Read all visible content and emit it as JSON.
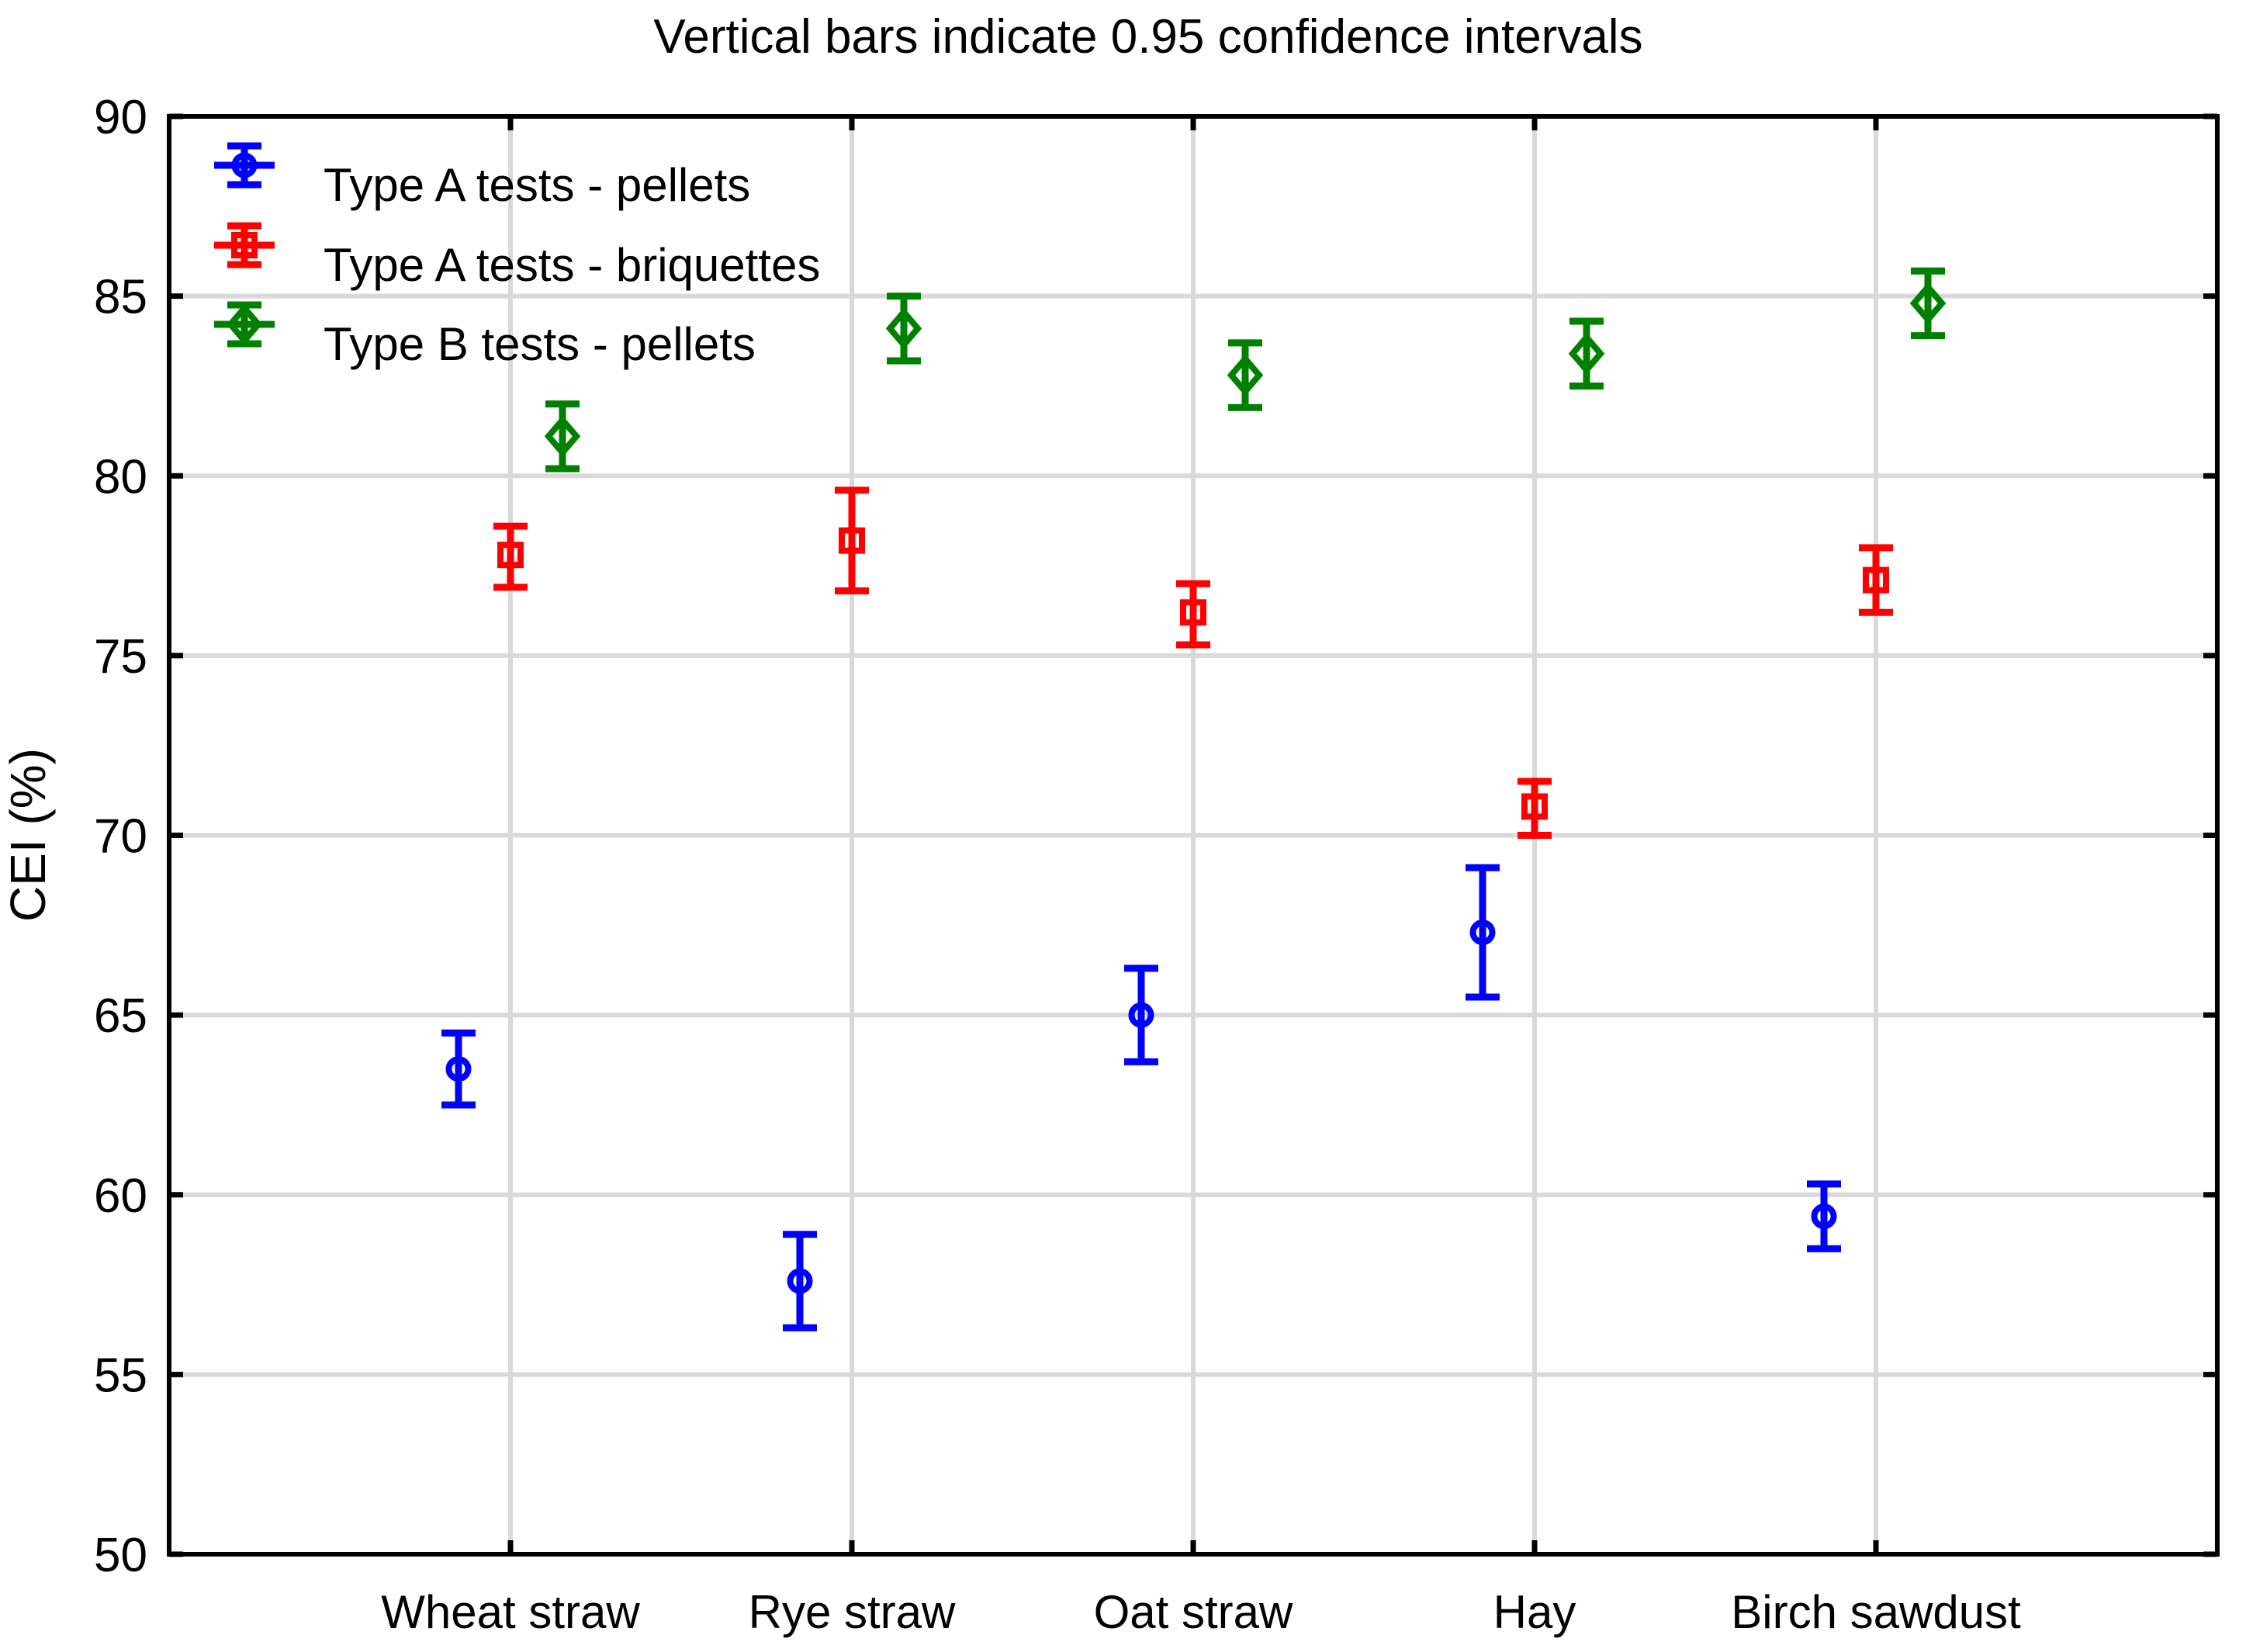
{
  "title": "Vertical bars indicate 0.95 confidence intervals",
  "ylabel": "CEI (%)",
  "legend": {
    "position": "top-left",
    "items": [
      {
        "label": "Type A tests - pellets",
        "marker": "circle",
        "color": "#0000ff"
      },
      {
        "label": "Type A tests - briquettes",
        "marker": "square",
        "color": "#ff0000"
      },
      {
        "label": "Type B tests - pellets",
        "marker": "diamond",
        "color": "#008000"
      }
    ]
  },
  "colors": {
    "blue_series": "#0000ff",
    "red_series": "#ff0000",
    "green_series": "#008000",
    "gridline": "#d9d9d9",
    "frame": "#000000"
  },
  "chart_data": {
    "type": "scatter",
    "subtype": "means-with-error-bars",
    "title": "Vertical bars indicate 0.95 confidence intervals",
    "xlabel": "",
    "ylabel": "CEI (%)",
    "categories": [
      "Wheat straw",
      "Rye straw",
      "Oat straw",
      "Hay",
      "Birch sawdust"
    ],
    "ylim": [
      50,
      90
    ],
    "ytick_step": 5,
    "ytick_labels": [
      "50",
      "55",
      "60",
      "65",
      "70",
      "75",
      "80",
      "85",
      "90"
    ],
    "grid": true,
    "legend_position": "top-left",
    "series": [
      {
        "name": "Type A tests - pellets",
        "marker": "circle",
        "color": "#0000ff",
        "values": [
          63.5,
          57.6,
          65.0,
          67.3,
          59.4
        ],
        "ci_low": [
          62.5,
          56.3,
          63.7,
          65.5,
          58.5
        ],
        "ci_high": [
          64.5,
          58.9,
          66.3,
          69.1,
          60.3
        ]
      },
      {
        "name": "Type A tests - briquettes",
        "marker": "square",
        "color": "#ff0000",
        "values": [
          77.8,
          78.2,
          76.2,
          70.8,
          77.1
        ],
        "ci_low": [
          76.9,
          76.8,
          75.3,
          70.0,
          76.2
        ],
        "ci_high": [
          78.6,
          79.6,
          77.0,
          71.5,
          78.0
        ]
      },
      {
        "name": "Type B tests - pellets",
        "marker": "diamond",
        "color": "#008000",
        "values": [
          81.1,
          84.1,
          82.8,
          83.4,
          84.8
        ],
        "ci_low": [
          80.2,
          83.2,
          81.9,
          82.5,
          83.9
        ],
        "ci_high": [
          82.0,
          85.0,
          83.7,
          84.3,
          85.7
        ]
      }
    ]
  }
}
